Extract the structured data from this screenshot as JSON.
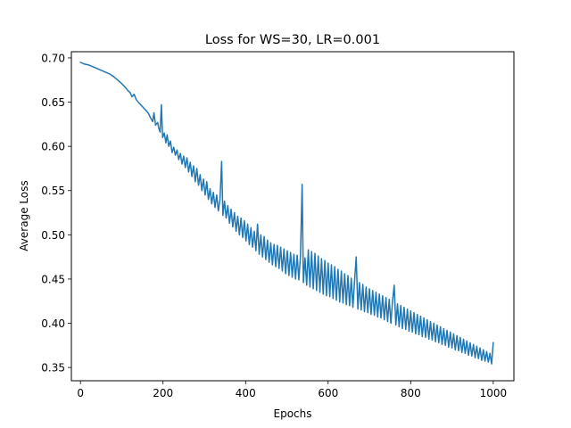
{
  "chart_data": {
    "type": "line",
    "title": "Loss for WS=30, LR=0.001",
    "xlabel": "Epochs",
    "ylabel": "Average Loss",
    "xlim": [
      -22,
      1050
    ],
    "ylim": [
      0.335,
      0.707
    ],
    "xticks": [
      0,
      200,
      400,
      600,
      800,
      1000
    ],
    "yticks": [
      0.35,
      0.4,
      0.45,
      0.5,
      0.55,
      0.6,
      0.65,
      0.7
    ],
    "grid": false,
    "legend": "none",
    "series": [
      {
        "color": "#1f77b4",
        "points": [
          [
            0,
            0.695
          ],
          [
            10,
            0.693
          ],
          [
            20,
            0.692
          ],
          [
            30,
            0.69
          ],
          [
            40,
            0.688
          ],
          [
            50,
            0.686
          ],
          [
            60,
            0.684
          ],
          [
            70,
            0.682
          ],
          [
            80,
            0.679
          ],
          [
            90,
            0.675
          ],
          [
            100,
            0.671
          ],
          [
            110,
            0.666
          ],
          [
            115,
            0.663
          ],
          [
            120,
            0.661
          ],
          [
            125,
            0.656
          ],
          [
            130,
            0.659
          ],
          [
            135,
            0.653
          ],
          [
            140,
            0.65
          ],
          [
            150,
            0.645
          ],
          [
            160,
            0.64
          ],
          [
            165,
            0.637
          ],
          [
            170,
            0.632
          ],
          [
            175,
            0.628
          ],
          [
            178,
            0.638
          ],
          [
            182,
            0.624
          ],
          [
            187,
            0.627
          ],
          [
            190,
            0.62
          ],
          [
            193,
            0.616
          ],
          [
            196,
            0.647
          ],
          [
            199,
            0.61
          ],
          [
            203,
            0.615
          ],
          [
            207,
            0.604
          ],
          [
            210,
            0.613
          ],
          [
            214,
            0.6
          ],
          [
            218,
            0.606
          ],
          [
            222,
            0.593
          ],
          [
            226,
            0.599
          ],
          [
            230,
            0.59
          ],
          [
            234,
            0.596
          ],
          [
            238,
            0.585
          ],
          [
            242,
            0.592
          ],
          [
            246,
            0.58
          ],
          [
            250,
            0.589
          ],
          [
            254,
            0.576
          ],
          [
            258,
            0.587
          ],
          [
            262,
            0.571
          ],
          [
            266,
            0.582
          ],
          [
            270,
            0.566
          ],
          [
            274,
            0.578
          ],
          [
            278,
            0.56
          ],
          [
            282,
            0.575
          ],
          [
            286,
            0.556
          ],
          [
            290,
            0.568
          ],
          [
            294,
            0.55
          ],
          [
            298,
            0.563
          ],
          [
            302,
            0.545
          ],
          [
            306,
            0.56
          ],
          [
            310,
            0.54
          ],
          [
            314,
            0.552
          ],
          [
            318,
            0.535
          ],
          [
            322,
            0.548
          ],
          [
            326,
            0.531
          ],
          [
            330,
            0.545
          ],
          [
            334,
            0.527
          ],
          [
            338,
            0.54
          ],
          [
            342,
            0.583
          ],
          [
            345,
            0.522
          ],
          [
            349,
            0.538
          ],
          [
            353,
            0.519
          ],
          [
            357,
            0.533
          ],
          [
            361,
            0.513
          ],
          [
            365,
            0.529
          ],
          [
            369,
            0.509
          ],
          [
            373,
            0.525
          ],
          [
            377,
            0.504
          ],
          [
            381,
            0.521
          ],
          [
            385,
            0.5
          ],
          [
            389,
            0.519
          ],
          [
            393,
            0.497
          ],
          [
            397,
            0.516
          ],
          [
            401,
            0.493
          ],
          [
            405,
            0.512
          ],
          [
            409,
            0.489
          ],
          [
            413,
            0.508
          ],
          [
            417,
            0.486
          ],
          [
            421,
            0.504
          ],
          [
            425,
            0.482
          ],
          [
            429,
            0.512
          ],
          [
            433,
            0.478
          ],
          [
            437,
            0.5
          ],
          [
            441,
            0.475
          ],
          [
            445,
            0.498
          ],
          [
            449,
            0.472
          ],
          [
            453,
            0.494
          ],
          [
            457,
            0.469
          ],
          [
            461,
            0.491
          ],
          [
            465,
            0.466
          ],
          [
            469,
            0.489
          ],
          [
            473,
            0.464
          ],
          [
            477,
            0.488
          ],
          [
            481,
            0.462
          ],
          [
            485,
            0.486
          ],
          [
            489,
            0.459
          ],
          [
            493,
            0.484
          ],
          [
            497,
            0.456
          ],
          [
            501,
            0.482
          ],
          [
            505,
            0.454
          ],
          [
            509,
            0.48
          ],
          [
            513,
            0.452
          ],
          [
            517,
            0.478
          ],
          [
            521,
            0.45
          ],
          [
            525,
            0.477
          ],
          [
            529,
            0.449
          ],
          [
            533,
            0.476
          ],
          [
            537,
            0.557
          ],
          [
            540,
            0.446
          ],
          [
            544,
            0.474
          ],
          [
            548,
            0.443
          ],
          [
            552,
            0.483
          ],
          [
            556,
            0.441
          ],
          [
            560,
            0.481
          ],
          [
            564,
            0.439
          ],
          [
            568,
            0.479
          ],
          [
            572,
            0.437
          ],
          [
            576,
            0.476
          ],
          [
            580,
            0.435
          ],
          [
            584,
            0.473
          ],
          [
            588,
            0.433
          ],
          [
            592,
            0.471
          ],
          [
            596,
            0.431
          ],
          [
            600,
            0.468
          ],
          [
            604,
            0.43
          ],
          [
            608,
            0.466
          ],
          [
            612,
            0.428
          ],
          [
            616,
            0.464
          ],
          [
            620,
            0.426
          ],
          [
            624,
            0.461
          ],
          [
            628,
            0.424
          ],
          [
            632,
            0.459
          ],
          [
            636,
            0.423
          ],
          [
            640,
            0.456
          ],
          [
            644,
            0.421
          ],
          [
            648,
            0.454
          ],
          [
            652,
            0.42
          ],
          [
            656,
            0.451
          ],
          [
            660,
            0.418
          ],
          [
            664,
            0.448
          ],
          [
            668,
            0.475
          ],
          [
            672,
            0.416
          ],
          [
            676,
            0.446
          ],
          [
            680,
            0.415
          ],
          [
            684,
            0.444
          ],
          [
            688,
            0.413
          ],
          [
            692,
            0.441
          ],
          [
            696,
            0.412
          ],
          [
            700,
            0.439
          ],
          [
            704,
            0.41
          ],
          [
            708,
            0.437
          ],
          [
            712,
            0.409
          ],
          [
            716,
            0.435
          ],
          [
            720,
            0.407
          ],
          [
            724,
            0.433
          ],
          [
            728,
            0.406
          ],
          [
            732,
            0.431
          ],
          [
            736,
            0.404
          ],
          [
            740,
            0.429
          ],
          [
            744,
            0.402
          ],
          [
            748,
            0.427
          ],
          [
            752,
            0.4
          ],
          [
            756,
            0.425
          ],
          [
            760,
            0.443
          ],
          [
            764,
            0.398
          ],
          [
            768,
            0.422
          ],
          [
            772,
            0.396
          ],
          [
            776,
            0.42
          ],
          [
            780,
            0.394
          ],
          [
            784,
            0.418
          ],
          [
            788,
            0.393
          ],
          [
            792,
            0.416
          ],
          [
            796,
            0.391
          ],
          [
            800,
            0.414
          ],
          [
            804,
            0.39
          ],
          [
            808,
            0.412
          ],
          [
            812,
            0.388
          ],
          [
            816,
            0.41
          ],
          [
            820,
            0.387
          ],
          [
            824,
            0.408
          ],
          [
            828,
            0.385
          ],
          [
            832,
            0.406
          ],
          [
            836,
            0.384
          ],
          [
            840,
            0.404
          ],
          [
            844,
            0.382
          ],
          [
            848,
            0.402
          ],
          [
            852,
            0.381
          ],
          [
            856,
            0.4
          ],
          [
            860,
            0.379
          ],
          [
            864,
            0.398
          ],
          [
            868,
            0.378
          ],
          [
            872,
            0.396
          ],
          [
            876,
            0.376
          ],
          [
            880,
            0.394
          ],
          [
            884,
            0.375
          ],
          [
            888,
            0.392
          ],
          [
            892,
            0.373
          ],
          [
            896,
            0.39
          ],
          [
            900,
            0.372
          ],
          [
            904,
            0.388
          ],
          [
            908,
            0.37
          ],
          [
            912,
            0.386
          ],
          [
            916,
            0.369
          ],
          [
            920,
            0.384
          ],
          [
            924,
            0.367
          ],
          [
            928,
            0.382
          ],
          [
            932,
            0.366
          ],
          [
            936,
            0.38
          ],
          [
            940,
            0.364
          ],
          [
            944,
            0.378
          ],
          [
            948,
            0.363
          ],
          [
            952,
            0.376
          ],
          [
            956,
            0.361
          ],
          [
            960,
            0.374
          ],
          [
            964,
            0.36
          ],
          [
            968,
            0.372
          ],
          [
            972,
            0.358
          ],
          [
            976,
            0.37
          ],
          [
            980,
            0.357
          ],
          [
            984,
            0.368
          ],
          [
            988,
            0.356
          ],
          [
            992,
            0.366
          ],
          [
            996,
            0.354
          ],
          [
            1000,
            0.378
          ]
        ]
      }
    ]
  }
}
